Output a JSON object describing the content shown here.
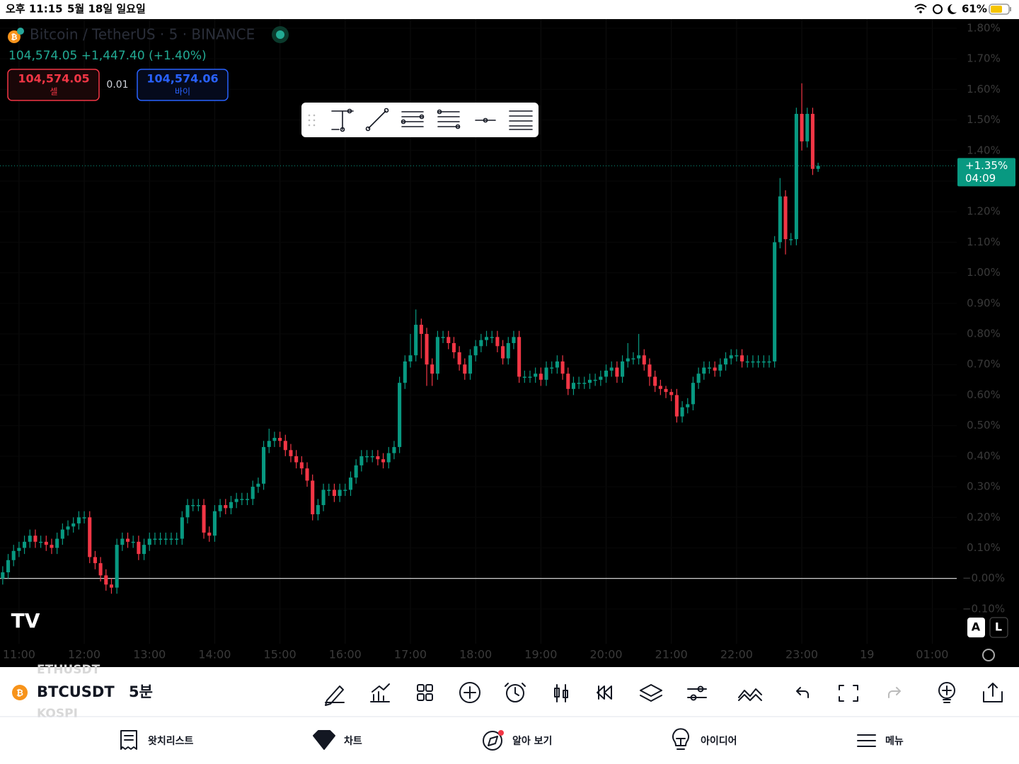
{
  "status_bar": {
    "time": "오후 11:15",
    "date": "5월 18일 일요일",
    "battery": "61%"
  },
  "symbol_header": {
    "title": "Bitcoin / TetherUS · 5 · BINANCE",
    "quote": "104,574.05 +1,447.40 (+1.40%)",
    "sell_price": "104,574.05",
    "sell_label": "셀",
    "spread": "0.01",
    "buy_price": "104,574.06",
    "buy_label": "바이"
  },
  "chart_data": {
    "type": "candlestick",
    "up_color": "#089981",
    "down_color": "#f23645",
    "grid": true,
    "baseline": 0,
    "ylim": [
      -0.29,
      1.83
    ],
    "xlim": [
      -0.5,
      175.5
    ],
    "yticks": [
      {
        "value": 1.8,
        "label": "1.80%"
      },
      {
        "value": 1.7,
        "label": "1.70%"
      },
      {
        "value": 1.6,
        "label": "1.60%"
      },
      {
        "value": 1.5,
        "label": "1.50%"
      },
      {
        "value": 1.4,
        "label": "1.40%"
      },
      {
        "value": 1.3,
        "label": "1.30%"
      },
      {
        "value": 1.2,
        "label": "1.20%"
      },
      {
        "value": 1.1,
        "label": "1.10%"
      },
      {
        "value": 1.0,
        "label": "1.00%"
      },
      {
        "value": 0.9,
        "label": "0.90%"
      },
      {
        "value": 0.8,
        "label": "0.80%"
      },
      {
        "value": 0.7,
        "label": "0.70%"
      },
      {
        "value": 0.6,
        "label": "0.60%"
      },
      {
        "value": 0.5,
        "label": "0.50%"
      },
      {
        "value": 0.4,
        "label": "0.40%"
      },
      {
        "value": 0.3,
        "label": "0.30%"
      },
      {
        "value": 0.2,
        "label": "0.20%"
      },
      {
        "value": 0.1,
        "label": "0.10%"
      },
      {
        "value": 0,
        "label": "−0.00%"
      },
      {
        "value": -0.1,
        "label": "−0.10%"
      }
    ],
    "xticks": [
      {
        "value": 3,
        "label": "11:00"
      },
      {
        "value": 15,
        "label": "12:00"
      },
      {
        "value": 27,
        "label": "13:00"
      },
      {
        "value": 39,
        "label": "14:00"
      },
      {
        "value": 51,
        "label": "15:00"
      },
      {
        "value": 63,
        "label": "16:00"
      },
      {
        "value": 75,
        "label": "17:00"
      },
      {
        "value": 87,
        "label": "18:00"
      },
      {
        "value": 99,
        "label": "19:00"
      },
      {
        "value": 111,
        "label": "20:00"
      },
      {
        "value": 123,
        "label": "21:00"
      },
      {
        "value": 135,
        "label": "22:00"
      },
      {
        "value": 147,
        "label": "23:00"
      },
      {
        "value": 159,
        "label": "19"
      },
      {
        "value": 171,
        "label": "01:00"
      }
    ],
    "open": [
      0.0,
      0.02,
      0.06,
      0.09,
      0.1,
      0.12,
      0.14,
      0.12,
      0.12,
      0.11,
      0.1,
      0.13,
      0.16,
      0.17,
      0.18,
      0.2,
      0.2,
      0.07,
      0.05,
      0.01,
      -0.02,
      -0.03,
      0.11,
      0.13,
      0.12,
      0.12,
      0.08,
      0.11,
      0.13,
      0.13,
      0.13,
      0.13,
      0.13,
      0.13,
      0.2,
      0.24,
      0.24,
      0.24,
      0.15,
      0.14,
      0.22,
      0.24,
      0.23,
      0.25,
      0.26,
      0.26,
      0.26,
      0.3,
      0.31,
      0.43,
      0.45,
      0.46,
      0.45,
      0.42,
      0.4,
      0.38,
      0.36,
      0.32,
      0.21,
      0.24,
      0.29,
      0.29,
      0.27,
      0.29,
      0.29,
      0.33,
      0.37,
      0.4,
      0.4,
      0.4,
      0.39,
      0.38,
      0.41,
      0.43,
      0.64,
      0.71,
      0.73,
      0.83,
      0.8,
      0.7,
      0.67,
      0.79,
      0.79,
      0.77,
      0.74,
      0.7,
      0.67,
      0.73,
      0.76,
      0.78,
      0.79,
      0.79,
      0.76,
      0.72,
      0.77,
      0.79,
      0.66,
      0.66,
      0.66,
      0.67,
      0.65,
      0.69,
      0.69,
      0.71,
      0.67,
      0.62,
      0.64,
      0.64,
      0.64,
      0.65,
      0.65,
      0.66,
      0.68,
      0.69,
      0.66,
      0.71,
      0.72,
      0.72,
      0.73,
      0.7,
      0.66,
      0.63,
      0.62,
      0.61,
      0.6,
      0.53,
      0.56,
      0.57,
      0.64,
      0.67,
      0.69,
      0.69,
      0.68,
      0.7,
      0.72,
      0.73,
      0.73,
      0.71,
      0.71,
      0.71,
      0.71,
      0.71,
      0.71,
      1.1,
      1.25,
      1.11,
      1.11,
      1.52,
      1.43,
      1.52,
      1.34
    ],
    "high": [
      0.04,
      0.08,
      0.11,
      0.12,
      0.14,
      0.16,
      0.16,
      0.14,
      0.14,
      0.13,
      0.15,
      0.18,
      0.19,
      0.2,
      0.22,
      0.22,
      0.22,
      0.09,
      0.07,
      0.03,
      0.0,
      0.13,
      0.15,
      0.15,
      0.14,
      0.14,
      0.13,
      0.15,
      0.15,
      0.15,
      0.15,
      0.15,
      0.15,
      0.22,
      0.26,
      0.26,
      0.26,
      0.26,
      0.17,
      0.24,
      0.26,
      0.26,
      0.27,
      0.28,
      0.28,
      0.28,
      0.32,
      0.33,
      0.45,
      0.49,
      0.48,
      0.48,
      0.47,
      0.44,
      0.42,
      0.4,
      0.38,
      0.34,
      0.26,
      0.31,
      0.31,
      0.31,
      0.31,
      0.31,
      0.35,
      0.39,
      0.42,
      0.42,
      0.42,
      0.42,
      0.41,
      0.43,
      0.45,
      0.66,
      0.73,
      0.8,
      0.88,
      0.85,
      0.82,
      0.72,
      0.81,
      0.81,
      0.81,
      0.79,
      0.76,
      0.72,
      0.75,
      0.78,
      0.8,
      0.81,
      0.81,
      0.81,
      0.78,
      0.79,
      0.81,
      0.81,
      0.68,
      0.68,
      0.69,
      0.69,
      0.71,
      0.71,
      0.73,
      0.73,
      0.69,
      0.66,
      0.66,
      0.66,
      0.67,
      0.67,
      0.68,
      0.7,
      0.71,
      0.71,
      0.73,
      0.77,
      0.74,
      0.8,
      0.75,
      0.72,
      0.68,
      0.65,
      0.63,
      0.62,
      0.62,
      0.58,
      0.59,
      0.66,
      0.69,
      0.71,
      0.71,
      0.71,
      0.72,
      0.74,
      0.75,
      0.75,
      0.75,
      0.73,
      0.73,
      0.73,
      0.73,
      0.73,
      1.12,
      1.31,
      1.27,
      1.13,
      1.54,
      1.62,
      1.54,
      1.54,
      1.36
    ],
    "low": [
      -0.02,
      0.0,
      0.04,
      0.07,
      0.08,
      0.1,
      0.1,
      0.1,
      0.09,
      0.08,
      0.08,
      0.11,
      0.14,
      0.15,
      0.16,
      0.18,
      0.05,
      0.03,
      -0.01,
      -0.04,
      -0.05,
      -0.05,
      0.09,
      0.1,
      0.1,
      0.06,
      0.06,
      0.09,
      0.11,
      0.11,
      0.11,
      0.11,
      0.11,
      0.11,
      0.18,
      0.22,
      0.22,
      0.13,
      0.12,
      0.12,
      0.2,
      0.21,
      0.21,
      0.23,
      0.24,
      0.24,
      0.24,
      0.28,
      0.29,
      0.41,
      0.43,
      0.43,
      0.4,
      0.38,
      0.36,
      0.34,
      0.3,
      0.19,
      0.19,
      0.22,
      0.27,
      0.25,
      0.25,
      0.27,
      0.27,
      0.31,
      0.35,
      0.38,
      0.38,
      0.37,
      0.36,
      0.36,
      0.39,
      0.41,
      0.62,
      0.69,
      0.71,
      0.72,
      0.63,
      0.63,
      0.65,
      0.77,
      0.75,
      0.72,
      0.68,
      0.65,
      0.65,
      0.71,
      0.74,
      0.76,
      0.77,
      0.74,
      0.7,
      0.7,
      0.75,
      0.64,
      0.64,
      0.64,
      0.64,
      0.63,
      0.63,
      0.67,
      0.67,
      0.65,
      0.6,
      0.6,
      0.62,
      0.62,
      0.62,
      0.63,
      0.63,
      0.64,
      0.66,
      0.64,
      0.64,
      0.69,
      0.7,
      0.7,
      0.68,
      0.63,
      0.61,
      0.6,
      0.59,
      0.58,
      0.51,
      0.51,
      0.54,
      0.55,
      0.62,
      0.65,
      0.67,
      0.66,
      0.66,
      0.68,
      0.7,
      0.71,
      0.69,
      0.69,
      0.69,
      0.69,
      0.69,
      0.69,
      0.69,
      1.08,
      1.06,
      1.09,
      1.09,
      1.4,
      1.41,
      1.32,
      1.33
    ],
    "close": [
      0.02,
      0.06,
      0.09,
      0.1,
      0.12,
      0.14,
      0.12,
      0.12,
      0.11,
      0.1,
      0.13,
      0.16,
      0.17,
      0.18,
      0.2,
      0.2,
      0.07,
      0.05,
      0.01,
      -0.02,
      -0.03,
      0.11,
      0.13,
      0.12,
      0.12,
      0.08,
      0.11,
      0.13,
      0.13,
      0.13,
      0.13,
      0.13,
      0.13,
      0.2,
      0.24,
      0.24,
      0.24,
      0.15,
      0.14,
      0.22,
      0.24,
      0.23,
      0.25,
      0.26,
      0.26,
      0.26,
      0.3,
      0.31,
      0.43,
      0.45,
      0.46,
      0.45,
      0.42,
      0.4,
      0.38,
      0.36,
      0.32,
      0.21,
      0.24,
      0.29,
      0.29,
      0.27,
      0.29,
      0.29,
      0.33,
      0.37,
      0.4,
      0.4,
      0.4,
      0.39,
      0.38,
      0.41,
      0.43,
      0.64,
      0.71,
      0.73,
      0.83,
      0.8,
      0.7,
      0.67,
      0.79,
      0.79,
      0.77,
      0.74,
      0.7,
      0.67,
      0.73,
      0.76,
      0.78,
      0.79,
      0.79,
      0.76,
      0.72,
      0.77,
      0.79,
      0.66,
      0.66,
      0.66,
      0.67,
      0.65,
      0.69,
      0.69,
      0.71,
      0.67,
      0.62,
      0.64,
      0.64,
      0.64,
      0.65,
      0.65,
      0.66,
      0.68,
      0.69,
      0.66,
      0.71,
      0.72,
      0.72,
      0.73,
      0.7,
      0.66,
      0.63,
      0.62,
      0.61,
      0.6,
      0.53,
      0.56,
      0.57,
      0.64,
      0.67,
      0.69,
      0.69,
      0.68,
      0.7,
      0.72,
      0.73,
      0.73,
      0.71,
      0.71,
      0.71,
      0.71,
      0.71,
      0.71,
      1.1,
      1.25,
      1.11,
      1.11,
      1.52,
      1.43,
      1.52,
      1.34,
      1.35
    ],
    "price_tag": {
      "value": 1.35,
      "label": "+1.35%",
      "countdown": "04:09"
    },
    "scale_buttons": [
      "A",
      "L"
    ]
  },
  "toolbar": {
    "symbol": "BTCUSDT",
    "interval": "5분",
    "previous_symbol": "ETHUSDT",
    "next_symbol": "KOSPI"
  },
  "tab_bar": {
    "tabs": [
      "왓치리스트",
      "차트",
      "알아 보기",
      "아이디어",
      "메뉴"
    ]
  }
}
